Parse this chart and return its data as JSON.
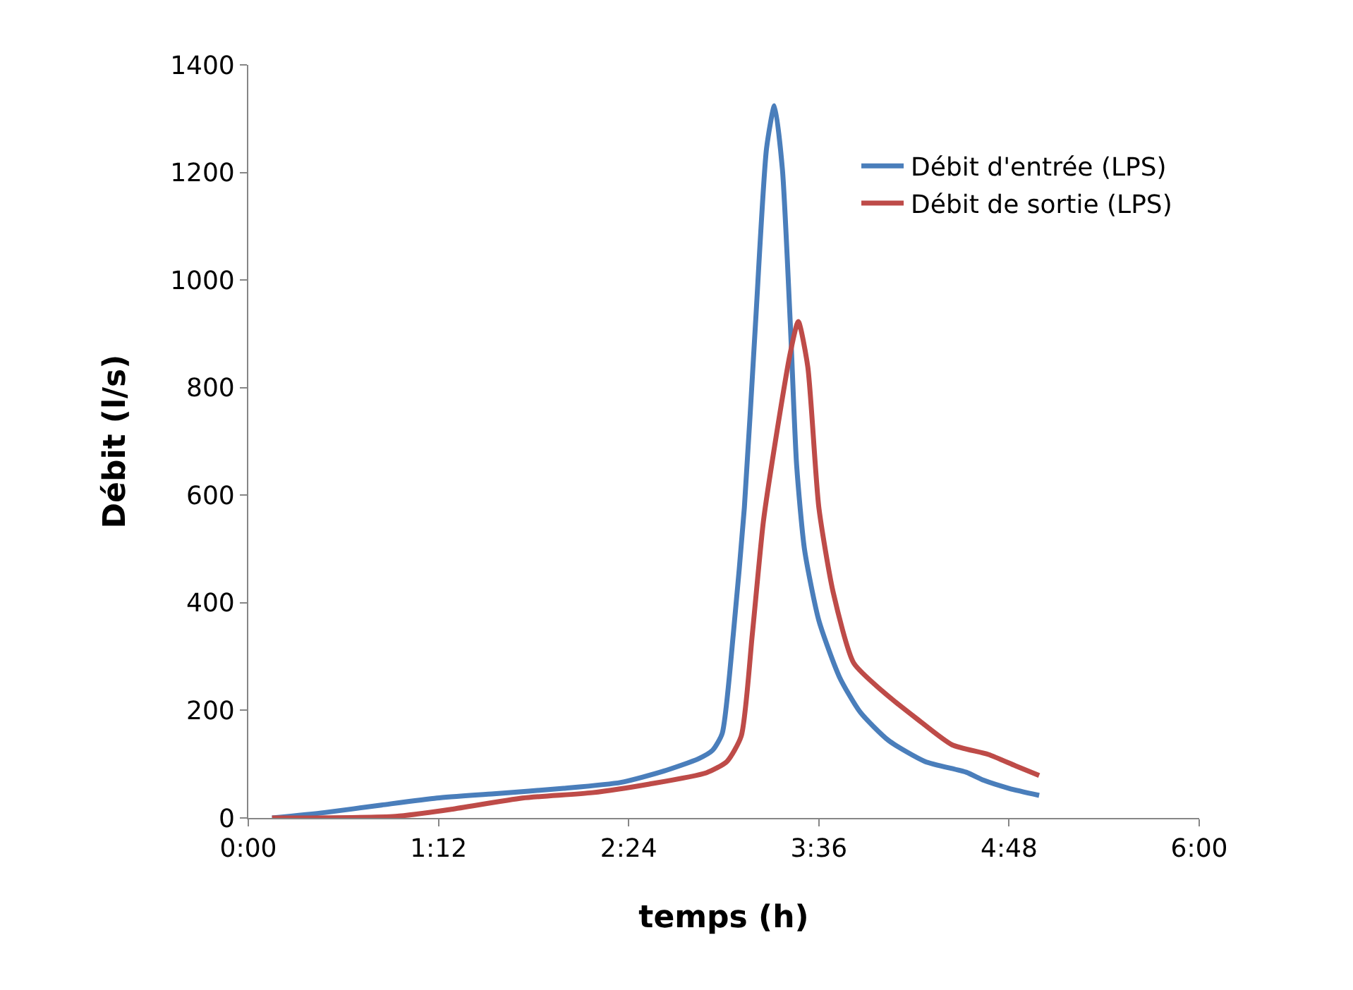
{
  "chart_data": {
    "type": "line",
    "xlabel": "temps (h)",
    "ylabel": "Débit (l/s)",
    "xlim": [
      0,
      6
    ],
    "xticks": [
      {
        "value": 0,
        "label": "0:00"
      },
      {
        "value": 1.2,
        "label": "1:12"
      },
      {
        "value": 2.4,
        "label": "2:24"
      },
      {
        "value": 3.6,
        "label": "3:36"
      },
      {
        "value": 4.8,
        "label": "4:48"
      },
      {
        "value": 6,
        "label": "6:00"
      }
    ],
    "ylim": [
      0,
      1400
    ],
    "yticks": [
      0,
      200,
      400,
      600,
      800,
      1000,
      1200,
      1400
    ],
    "grid": false,
    "legend": "top right",
    "marker": "none",
    "line_style": "solid",
    "series": [
      {
        "name": "Débit d'entrée (LPS)",
        "color": "#4a7ebb",
        "x": [
          0.15,
          0.48,
          0.84,
          1.19,
          1.55,
          1.99,
          2.35,
          2.62,
          2.84,
          2.93,
          2.99,
          3.06,
          3.13,
          3.2,
          3.27,
          3.32,
          3.37,
          3.42,
          3.46,
          3.51,
          3.6,
          3.73,
          3.86,
          4.04,
          4.27,
          4.53,
          4.64,
          4.8,
          4.99
        ],
        "values": [
          0,
          10,
          24,
          37,
          45,
          55,
          66,
          87,
          110,
          126,
          157,
          341,
          577,
          918,
          1245,
          1324,
          1206,
          918,
          655,
          498,
          367,
          262,
          197,
          144,
          105,
          85,
          70,
          55,
          42
        ]
      },
      {
        "name": "Débit de sortie (LPS)",
        "color": "#be4b48",
        "x": [
          0.15,
          0.93,
          1.28,
          1.73,
          2.17,
          2.53,
          2.89,
          3.02,
          3.11,
          3.18,
          3.25,
          3.33,
          3.42,
          3.47,
          3.53,
          3.6,
          3.69,
          3.82,
          4.0,
          4.22,
          4.44,
          4.67,
          4.84,
          4.99
        ],
        "values": [
          0,
          3,
          16,
          37,
          47,
          63,
          84,
          105,
          152,
          341,
          551,
          708,
          865,
          923,
          839,
          577,
          420,
          288,
          236,
          184,
          136,
          118,
          97,
          79
        ]
      }
    ]
  }
}
